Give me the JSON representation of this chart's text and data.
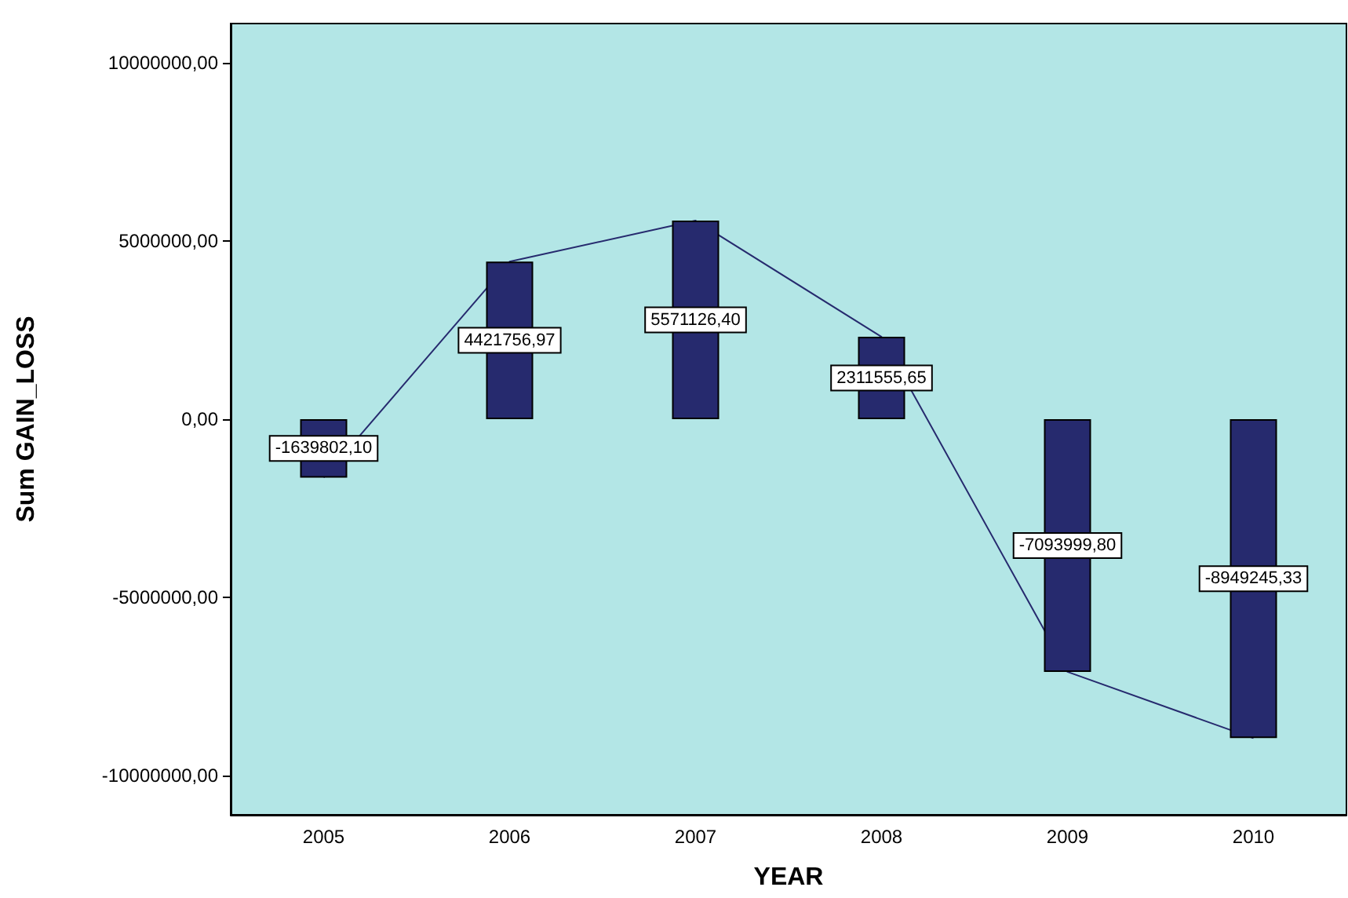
{
  "chart_data": {
    "type": "bar",
    "xlabel": "YEAR",
    "ylabel": "Sum GAIN_LOSS",
    "categories": [
      "2005",
      "2006",
      "2007",
      "2008",
      "2009",
      "2010"
    ],
    "series": [
      {
        "color": "#262a6e",
        "values": [
          -1639802.1,
          4421756.97,
          5571126.4,
          2311555.65,
          -7093999.8,
          -8949245.33
        ],
        "value_labels": [
          "-1639802,10",
          "4421756,97",
          "5571126,40",
          "2311555,65",
          "-7093999,80",
          "-8949245,33"
        ]
      },
      {
        "type": "line",
        "color": "#262a6e",
        "values": [
          -1640000,
          4420000,
          5570000,
          2310000,
          -7090000,
          -8950000
        ]
      }
    ],
    "ylim": [
      -11100000,
      11100000
    ],
    "yticks": [
      {
        "value": -10000000,
        "label": "-10000000,00"
      },
      {
        "value": -5000000,
        "label": "-5000000,00"
      },
      {
        "value": 0,
        "label": "0,00"
      },
      {
        "value": 5000000,
        "label": "5000000,00"
      },
      {
        "value": 10000000,
        "label": "10000000,00"
      }
    ],
    "marker": "none"
  }
}
